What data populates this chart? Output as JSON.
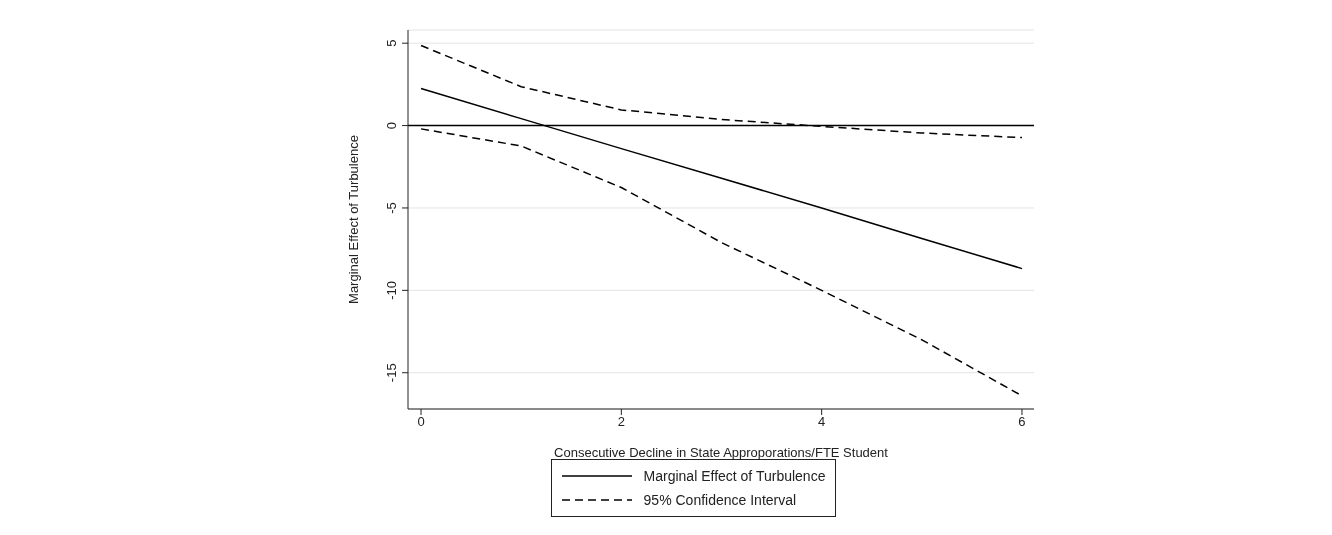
{
  "chart_data": {
    "type": "line",
    "xlabel": "Consecutive Decline in State Approporations/FTE Student",
    "ylabel": "Marginal Effect of Turbulence",
    "x": [
      0,
      1,
      2,
      3,
      4,
      5,
      6
    ],
    "series": [
      {
        "name": "Marginal Effect of Turbulence",
        "color": "#000000",
        "line_style": "solid",
        "values": [
          2.25,
          0.42,
          -1.4,
          -3.2,
          -5.0,
          -6.85,
          -8.68
        ]
      },
      {
        "name": "95% Confidence Interval",
        "color": "#000000",
        "line_style": "dashed",
        "values": [
          4.86,
          2.36,
          0.95,
          0.37,
          -0.05,
          -0.45,
          -0.73
        ]
      },
      {
        "color": "#000000",
        "line_style": "dashed",
        "values": [
          -0.2,
          -1.24,
          -3.76,
          -7.1,
          -10.0,
          -13.0,
          -16.4
        ]
      }
    ],
    "xlim": [
      -0.13,
      6.12
    ],
    "xticks": [
      0,
      2,
      4,
      6
    ],
    "ylim": [
      -17.2,
      5.8
    ],
    "yticks": [
      -15,
      -10,
      -5,
      0,
      5
    ],
    "ref_lines": [
      {
        "axis": "y",
        "value": 0,
        "color": "#000000",
        "line_style": "solid"
      }
    ],
    "grid": "y",
    "legend": "bottom",
    "marker": "none"
  }
}
